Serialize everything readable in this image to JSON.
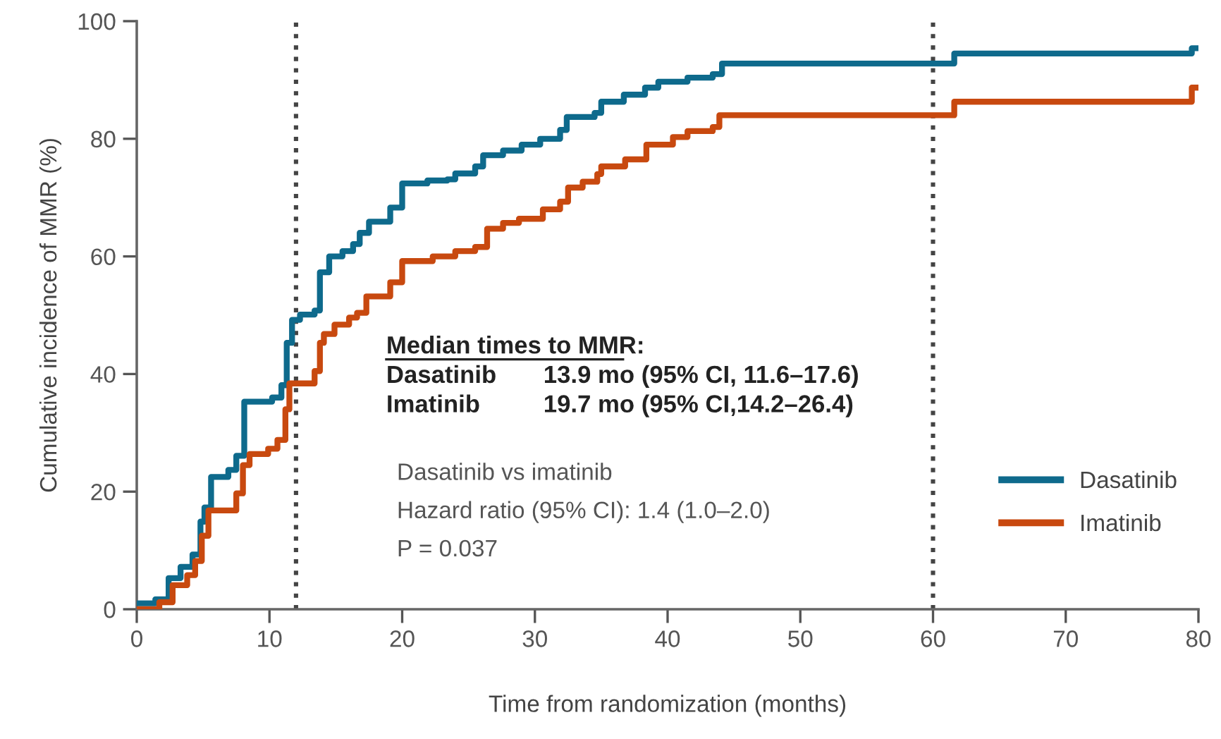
{
  "chart_data": {
    "type": "step",
    "xlabel": "Time from randomization (months)",
    "ylabel": "Cumulative incidence of MMR (%)",
    "xlim": [
      0,
      80
    ],
    "ylim": [
      0,
      100
    ],
    "xticks": [
      0,
      10,
      20,
      30,
      40,
      50,
      60,
      70,
      80
    ],
    "yticks": [
      0,
      20,
      40,
      60,
      80,
      100
    ],
    "grid": false,
    "legend": "right",
    "line_style": "solid",
    "marker": "none",
    "series": [
      {
        "name": "Dasatinib",
        "color": "#0e6a8c",
        "x": [
          0,
          1.4,
          2.4,
          3.3,
          4.2,
          4.8,
          5.1,
          5.6,
          6.9,
          7.5,
          8.1,
          10.2,
          10.9,
          11.3,
          11.7,
          12.3,
          13.4,
          13.8,
          14.5,
          15.5,
          16.3,
          16.8,
          17.5,
          19.1,
          20,
          21.9,
          23.4,
          24,
          25.5,
          26.1,
          27.6,
          29,
          30.4,
          31.9,
          32.4,
          34.5,
          35,
          36.7,
          38.3,
          39.3,
          41.5,
          43.4,
          44.1,
          61.6,
          79.5,
          80
        ],
        "values": [
          1,
          1.7,
          5.3,
          7.2,
          9.3,
          14.9,
          17.3,
          22.5,
          23.7,
          26.1,
          35.3,
          36,
          38.1,
          45.3,
          49.2,
          50.1,
          50.8,
          57.3,
          60,
          60.9,
          62.1,
          64,
          65.9,
          68.3,
          72.4,
          72.9,
          73.1,
          74.1,
          75.3,
          77.2,
          78,
          79,
          80,
          81.5,
          83.7,
          84.4,
          86.3,
          87.5,
          88.7,
          89.7,
          90.4,
          91,
          92.8,
          94.5,
          95.4,
          95.4
        ]
      },
      {
        "name": "Imatinib",
        "color": "#c8490f",
        "x": [
          0,
          1.7,
          2.7,
          3.8,
          4.4,
          4.9,
          5.4,
          7.5,
          8,
          8.5,
          9.9,
          10.6,
          11.2,
          11.5,
          13.4,
          13.8,
          14.1,
          14.9,
          16,
          16.6,
          17.3,
          19.1,
          20,
          22.3,
          24,
          25.5,
          26.4,
          27.6,
          28.8,
          30.6,
          31.9,
          32.5,
          33.6,
          34.7,
          35,
          36.8,
          38.4,
          40.4,
          41.5,
          43.4,
          43.9,
          61.6,
          79.5,
          80
        ],
        "values": [
          0,
          1.2,
          4.1,
          5.8,
          8.2,
          12.5,
          16.8,
          19.7,
          24.5,
          26.4,
          27.3,
          28.8,
          34,
          38.4,
          40.5,
          45.3,
          46.8,
          48.4,
          49.6,
          50.4,
          53.2,
          55.6,
          59.2,
          60,
          60.9,
          61.6,
          64.7,
          65.7,
          66.4,
          68,
          69.3,
          71.7,
          72.7,
          74,
          75.3,
          76.5,
          79,
          80.3,
          81.3,
          82,
          84,
          86.3,
          88.7,
          88.7
        ]
      }
    ],
    "ref_lines": [
      {
        "axis": "x",
        "value": 12,
        "color": "#444444",
        "line_style": "dotted"
      },
      {
        "axis": "x",
        "value": 60,
        "color": "#444444",
        "line_style": "dotted"
      }
    ],
    "annotations": [
      "Median times to MMR:",
      "Dasatinib",
      "13.9 mo (95% CI, 11.6–17.6)",
      "Imatinib",
      "19.7 mo (95% CI,14.2–26.4)",
      "Dasatinib vs imatinib",
      "Hazard ratio (95% CI): 1.4 (1.0–2.0)",
      "P = 0.037"
    ]
  }
}
